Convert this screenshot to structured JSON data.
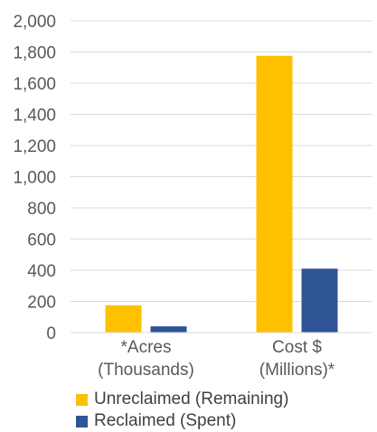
{
  "chart_data": {
    "type": "bar",
    "categories": [
      "*Acres\n(Thousands)",
      "Cost $\n(Millions)*"
    ],
    "series": [
      {
        "name": "Unreclaimed (Remaining)",
        "values": [
          175,
          1775
        ],
        "color": "#FFC000"
      },
      {
        "name": "Reclaimed (Spent)",
        "values": [
          40,
          410
        ],
        "color": "#2F5597"
      }
    ],
    "ylim": [
      0,
      2000
    ],
    "yticks": [
      0,
      200,
      400,
      600,
      800,
      1000,
      1200,
      1400,
      1600,
      1800,
      2000
    ],
    "ytick_labels": [
      "0",
      "200",
      "400",
      "600",
      "800",
      "1,000",
      "1,200",
      "1,400",
      "1,600",
      "1,800",
      "2,000"
    ],
    "grid": true,
    "gridline_color": "#d9d9d9",
    "legend_position": "bottom"
  }
}
